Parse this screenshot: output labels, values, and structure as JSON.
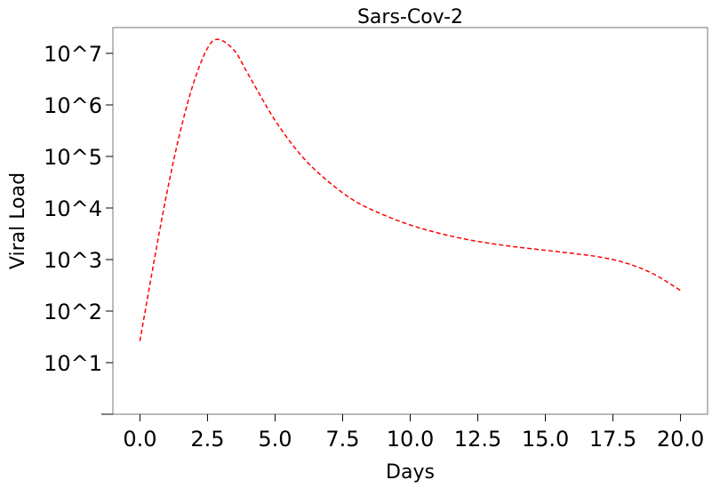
{
  "chart_data": {
    "type": "line",
    "title": "Sars-Cov-2",
    "xlabel": "Days",
    "ylabel": "Viral Load",
    "xlim": [
      -1.0,
      21.0
    ],
    "yscale": "log",
    "ylim_log10": [
      0.0,
      7.5
    ],
    "x_ticks": [
      0.0,
      2.5,
      5.0,
      7.5,
      10.0,
      12.5,
      15.0,
      17.5,
      20.0
    ],
    "x_tick_labels": [
      "0.0",
      "2.5",
      "5.0",
      "7.5",
      "10.0",
      "12.5",
      "15.0",
      "17.5",
      "20.0"
    ],
    "y_ticks_log10": [
      1,
      2,
      3,
      4,
      5,
      6,
      7
    ],
    "y_tick_labels": [
      "10^1",
      "10^2",
      "10^3",
      "10^4",
      "10^5",
      "10^6",
      "10^7"
    ],
    "grid": false,
    "series": [
      {
        "color": "#ff0000",
        "linestyle": "dashed",
        "x": [
          0.0,
          0.5,
          1.0,
          1.5,
          2.0,
          2.5,
          2.9,
          3.5,
          4.0,
          5.0,
          6.0,
          7.0,
          8.0,
          9.0,
          10.0,
          11.0,
          12.0,
          13.0,
          14.0,
          15.0,
          16.0,
          17.0,
          18.0,
          19.0,
          20.0
        ],
        "log10_values": [
          1.42,
          2.9,
          4.3,
          5.5,
          6.45,
          7.1,
          7.27,
          7.05,
          6.6,
          5.7,
          5.0,
          4.5,
          4.12,
          3.87,
          3.67,
          3.52,
          3.4,
          3.31,
          3.24,
          3.18,
          3.12,
          3.05,
          2.93,
          2.72,
          2.4
        ]
      }
    ]
  }
}
